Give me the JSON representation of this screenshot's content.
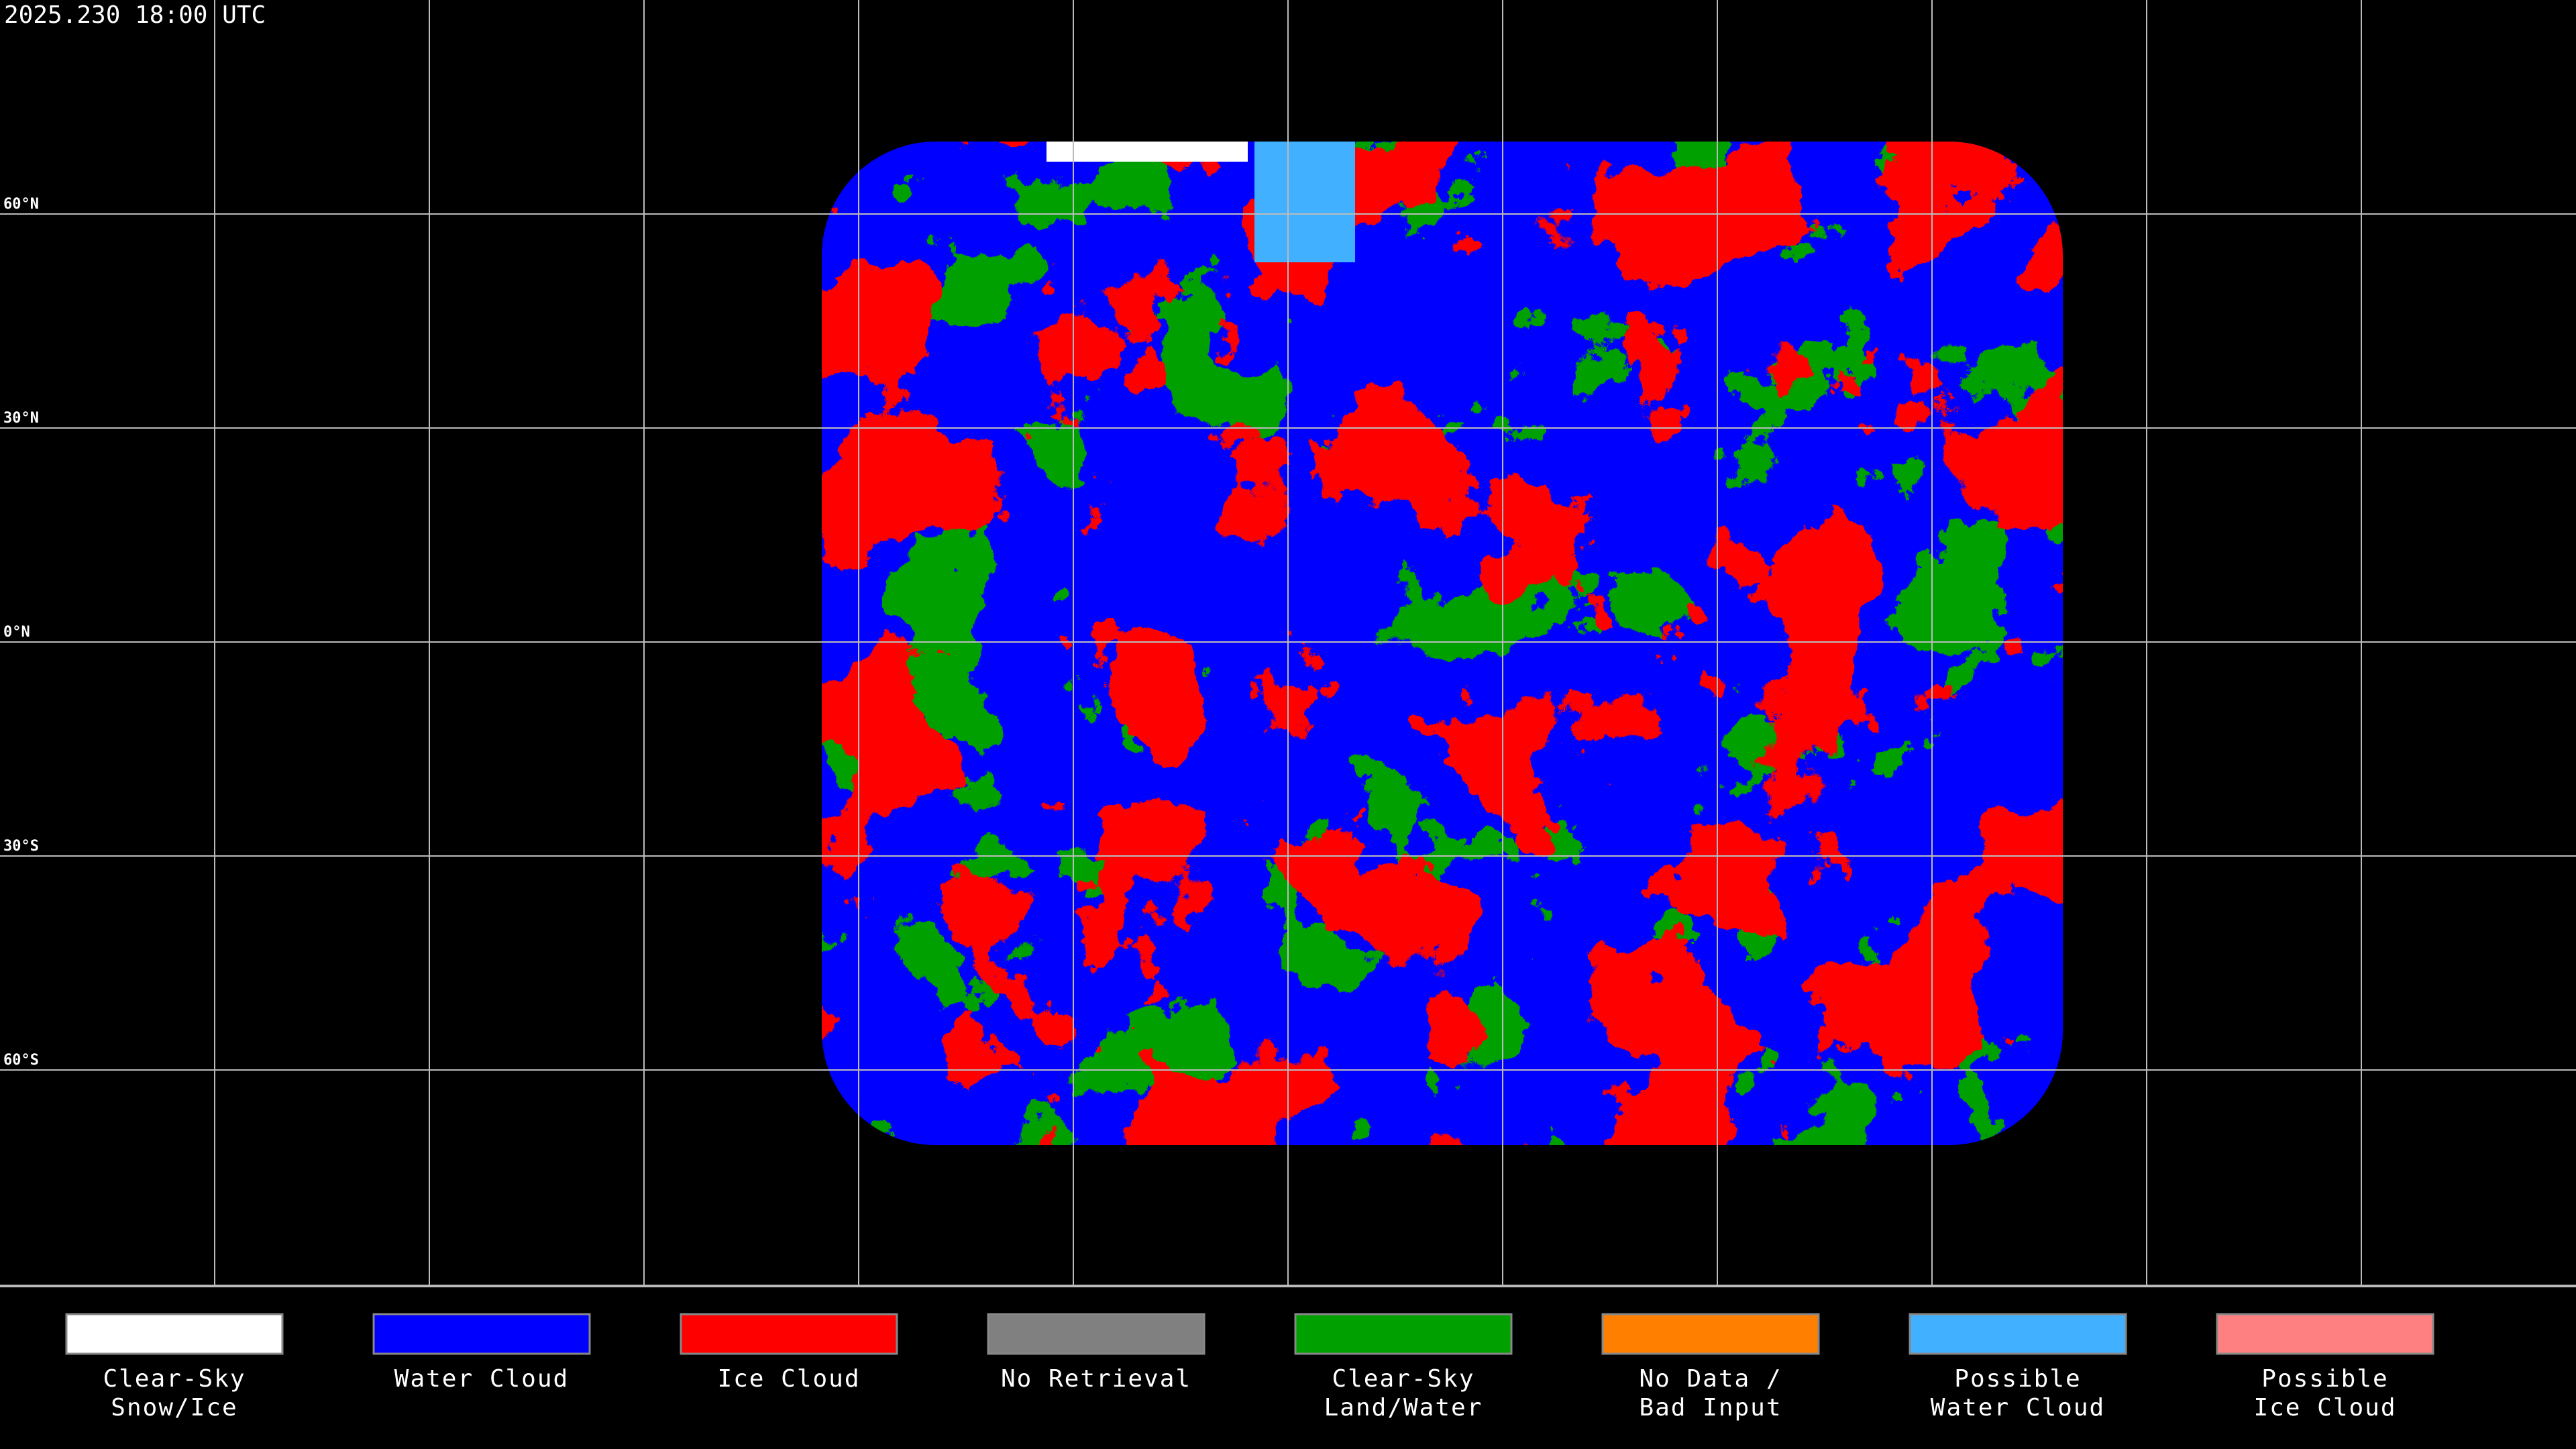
{
  "timestamp": "2025.230 18:00 UTC",
  "latitude_labels": [
    "60°N",
    "30°N",
    "0°N",
    "30°S",
    "60°S"
  ],
  "legend": [
    {
      "label": [
        "Clear-Sky",
        "Snow/Ice"
      ],
      "color": "#ffffff"
    },
    {
      "label": [
        "Water Cloud"
      ],
      "color": "#0000ff"
    },
    {
      "label": [
        "Ice Cloud"
      ],
      "color": "#ff0000"
    },
    {
      "label": [
        "No Retrieval"
      ],
      "color": "#808080"
    },
    {
      "label": [
        "Clear-Sky",
        "Land/Water"
      ],
      "color": "#00a000"
    },
    {
      "label": [
        "No Data /",
        "Bad Input"
      ],
      "color": "#ff8000"
    },
    {
      "label": [
        "Possible",
        "Water Cloud"
      ],
      "color": "#40b0ff"
    },
    {
      "label": [
        "Possible",
        "Ice Cloud"
      ],
      "color": "#ff8080"
    }
  ]
}
